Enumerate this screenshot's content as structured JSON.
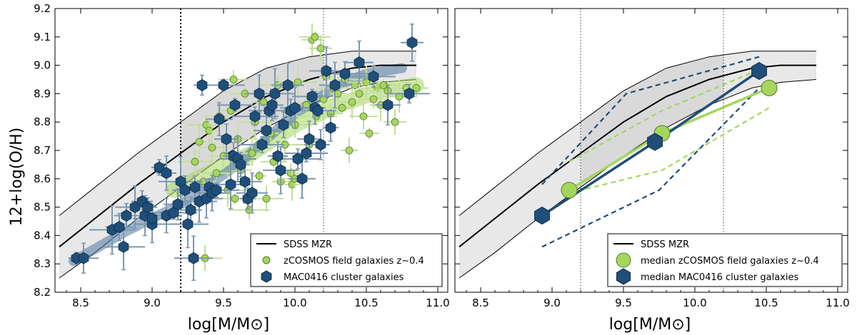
{
  "chart_data": [
    {
      "type": "scatter",
      "panel": "left",
      "xlabel": "log[M/M⊙]",
      "ylabel": "12+log(O/H)",
      "xlim": [
        8.32,
        11.07
      ],
      "ylim": [
        8.2,
        9.2
      ],
      "xticks": [
        "8.5",
        "9.0",
        "9.5",
        "10.0",
        "10.5",
        "11.0"
      ],
      "yticks": [
        "8.2",
        "8.3",
        "8.4",
        "8.5",
        "8.6",
        "8.7",
        "8.8",
        "8.9",
        "9.0",
        "9.1",
        "9.2"
      ],
      "vlines": [
        9.2,
        10.2
      ],
      "sdss_mzr": {
        "name": "SDSS MZR",
        "x": [
          8.35,
          8.6,
          8.9,
          9.2,
          9.5,
          9.8,
          10.1,
          10.4,
          10.6,
          10.85
        ],
        "y": [
          8.36,
          8.46,
          8.58,
          8.69,
          8.8,
          8.89,
          8.95,
          8.99,
          9.0,
          9.0
        ],
        "upper": [
          8.47,
          8.57,
          8.69,
          8.8,
          8.91,
          8.99,
          9.03,
          9.05,
          9.05,
          9.05
        ],
        "lower": [
          8.25,
          8.34,
          8.46,
          8.57,
          8.68,
          8.78,
          8.86,
          8.92,
          8.94,
          8.95
        ]
      },
      "zcosmos_fit": {
        "x": [
          9.15,
          9.4,
          9.7,
          10.0,
          10.3,
          10.6,
          10.85
        ],
        "y": [
          8.56,
          8.62,
          8.69,
          8.79,
          8.86,
          8.91,
          8.93
        ]
      },
      "mac0416_fit": {
        "x": [
          8.45,
          8.8,
          9.2,
          9.6,
          10.0,
          10.3,
          10.5,
          10.75
        ],
        "y": [
          8.31,
          8.41,
          8.51,
          8.65,
          8.83,
          8.93,
          8.97,
          8.99
        ]
      },
      "series": [
        {
          "name": "zCOSMOS field galaxies z~0.4",
          "points": [
            [
              9.2,
              8.55
            ],
            [
              9.22,
              8.57
            ],
            [
              9.3,
              8.66
            ],
            [
              9.33,
              8.73
            ],
            [
              9.36,
              8.59
            ],
            [
              9.38,
              8.79
            ],
            [
              9.4,
              8.77
            ],
            [
              9.42,
              8.71
            ],
            [
              9.45,
              8.62
            ],
            [
              9.47,
              8.82
            ],
            [
              9.5,
              8.68
            ],
            [
              9.53,
              8.56
            ],
            [
              9.55,
              8.84
            ],
            [
              9.57,
              8.95
            ],
            [
              9.6,
              8.74
            ],
            [
              9.62,
              8.63
            ],
            [
              9.65,
              8.9
            ],
            [
              9.68,
              8.49
            ],
            [
              9.7,
              8.69
            ],
            [
              9.72,
              8.8
            ],
            [
              9.75,
              8.61
            ],
            [
              9.78,
              8.87
            ],
            [
              9.8,
              8.53
            ],
            [
              9.83,
              8.76
            ],
            [
              9.85,
              8.66
            ],
            [
              9.88,
              8.93
            ],
            [
              9.9,
              8.59
            ],
            [
              9.93,
              8.72
            ],
            [
              9.95,
              8.84
            ],
            [
              9.97,
              8.62
            ],
            [
              10.0,
              8.79
            ],
            [
              10.02,
              8.94
            ],
            [
              10.05,
              8.68
            ],
            [
              10.08,
              8.86
            ],
            [
              10.1,
              8.72
            ],
            [
              10.12,
              9.09
            ],
            [
              10.14,
              9.1
            ],
            [
              10.15,
              8.82
            ],
            [
              10.18,
              9.06
            ],
            [
              10.2,
              8.88
            ],
            [
              10.22,
              8.96
            ],
            [
              10.25,
              8.83
            ],
            [
              10.27,
              8.92
            ],
            [
              10.3,
              8.9
            ],
            [
              10.33,
              8.85
            ],
            [
              10.35,
              8.95
            ],
            [
              10.38,
              8.7
            ],
            [
              10.4,
              8.87
            ],
            [
              10.42,
              8.93
            ],
            [
              10.45,
              8.9
            ],
            [
              10.48,
              8.82
            ],
            [
              10.5,
              8.94
            ],
            [
              10.52,
              8.76
            ],
            [
              10.55,
              8.88
            ],
            [
              10.58,
              8.92
            ],
            [
              10.6,
              8.86
            ],
            [
              10.62,
              8.93
            ],
            [
              10.65,
              8.91
            ],
            [
              10.7,
              8.8
            ],
            [
              10.73,
              8.89
            ],
            [
              10.78,
              8.92
            ],
            [
              10.85,
              8.92
            ],
            [
              9.37,
              8.32
            ],
            [
              9.98,
              8.58
            ],
            [
              9.58,
              8.53
            ],
            [
              10.0,
              8.6
            ]
          ]
        },
        {
          "name": "MAC0416 cluster galaxies",
          "points": [
            [
              8.47,
              8.32
            ],
            [
              8.52,
              8.32
            ],
            [
              8.72,
              8.42
            ],
            [
              8.77,
              8.43
            ],
            [
              8.8,
              8.36
            ],
            [
              8.82,
              8.47
            ],
            [
              8.88,
              8.5
            ],
            [
              8.93,
              8.52
            ],
            [
              8.95,
              8.47
            ],
            [
              8.97,
              8.5
            ],
            [
              9.0,
              8.44
            ],
            [
              9.05,
              8.64
            ],
            [
              9.1,
              8.47
            ],
            [
              9.15,
              8.48
            ],
            [
              9.18,
              8.51
            ],
            [
              9.2,
              8.59
            ],
            [
              9.23,
              8.56
            ],
            [
              9.25,
              8.44
            ],
            [
              9.27,
              8.49
            ],
            [
              9.29,
              8.32
            ],
            [
              9.3,
              8.57
            ],
            [
              9.33,
              8.52
            ],
            [
              9.35,
              8.93
            ],
            [
              9.38,
              8.53
            ],
            [
              9.4,
              8.57
            ],
            [
              9.42,
              8.55
            ],
            [
              9.45,
              8.56
            ],
            [
              9.47,
              8.81
            ],
            [
              9.5,
              8.93
            ],
            [
              9.52,
              8.74
            ],
            [
              9.55,
              8.58
            ],
            [
              9.57,
              8.68
            ],
            [
              9.6,
              8.67
            ],
            [
              9.62,
              8.65
            ],
            [
              9.65,
              8.59
            ],
            [
              9.67,
              8.53
            ],
            [
              9.7,
              8.55
            ],
            [
              9.72,
              8.82
            ],
            [
              9.75,
              8.9
            ],
            [
              9.77,
              8.72
            ],
            [
              9.8,
              8.77
            ],
            [
              9.82,
              8.84
            ],
            [
              9.84,
              8.86
            ],
            [
              9.86,
              8.9
            ],
            [
              9.88,
              8.68
            ],
            [
              9.9,
              8.63
            ],
            [
              9.92,
              8.79
            ],
            [
              9.95,
              8.93
            ],
            [
              9.97,
              8.84
            ],
            [
              10.0,
              8.85
            ],
            [
              10.02,
              8.67
            ],
            [
              10.05,
              8.6
            ],
            [
              10.08,
              8.69
            ],
            [
              10.1,
              8.74
            ],
            [
              10.12,
              8.89
            ],
            [
              10.14,
              8.85
            ],
            [
              10.16,
              8.84
            ],
            [
              10.18,
              8.72
            ],
            [
              10.22,
              8.98
            ],
            [
              10.25,
              8.78
            ],
            [
              10.28,
              8.93
            ],
            [
              10.35,
              8.97
            ],
            [
              10.45,
              9.01
            ],
            [
              10.55,
              8.96
            ],
            [
              10.65,
              8.86
            ],
            [
              10.8,
              8.9
            ],
            [
              10.82,
              9.08
            ],
            [
              9.0,
              8.46
            ],
            [
              9.1,
              8.62
            ],
            [
              9.58,
              8.86
            ]
          ]
        }
      ],
      "legend": {
        "position": "lower-right",
        "entries": [
          "SDSS MZR",
          "zCOSMOS field galaxies z∼0.4",
          "MAC0416 cluster galaxies"
        ]
      },
      "colors": {
        "zcosmos": "#a4d65e",
        "mac0416": "#1f4e79",
        "band": "#e8e8e8",
        "err_green": "#c3df9a",
        "err_blue": "#7d97af"
      }
    },
    {
      "type": "line",
      "panel": "right",
      "xlabel": "log[M/M⊙]",
      "xlim": [
        8.32,
        11.07
      ],
      "ylim": [
        8.2,
        9.2
      ],
      "xticks": [
        "8.5",
        "9.0",
        "9.5",
        "10.0",
        "10.5",
        "11.0"
      ],
      "vlines": [
        9.2,
        10.2
      ],
      "series": [
        {
          "name": "median zCOSMOS field galaxies z~0.4",
          "x": [
            9.12,
            9.77,
            10.52
          ],
          "y": [
            8.56,
            8.76,
            8.92
          ]
        },
        {
          "name": "median MAC0416 cluster galaxies",
          "x": [
            8.93,
            9.72,
            10.45
          ],
          "y": [
            8.47,
            8.73,
            8.98
          ]
        }
      ],
      "zcosmos_upper": {
        "x": [
          9.12,
          9.77,
          10.52
        ],
        "y": [
          8.66,
          8.84,
          9.0
        ]
      },
      "zcosmos_lower": {
        "x": [
          9.12,
          9.77,
          10.52
        ],
        "y": [
          8.55,
          8.63,
          8.85
        ]
      },
      "mac0416_upper": {
        "x": [
          8.93,
          9.52,
          10.45
        ],
        "y": [
          8.58,
          8.9,
          9.03
        ]
      },
      "mac0416_lower": {
        "x": [
          8.93,
          9.75,
          10.45
        ],
        "y": [
          8.36,
          8.56,
          8.92
        ]
      },
      "legend": {
        "position": "lower-right",
        "entries": [
          "SDSS MZR",
          "median zCOSMOS field galaxies z∼0.4",
          "median MAC0416 cluster galaxies"
        ]
      }
    }
  ]
}
